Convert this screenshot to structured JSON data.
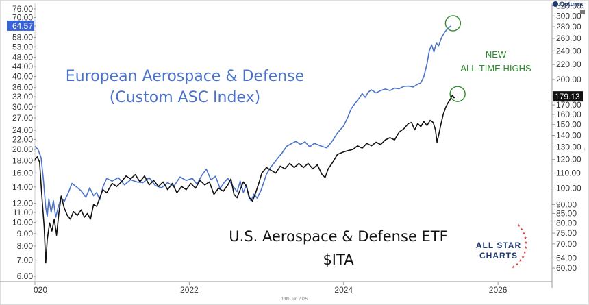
{
  "chart_data": {
    "type": "line",
    "x_axis": {
      "labels": [
        {
          "label": "020",
          "year": 2020.0
        },
        {
          "label": "2022",
          "year": 2022.0
        },
        {
          "label": "2024",
          "year": 2024.0
        },
        {
          "label": "2026",
          "year": 2026.0
        }
      ],
      "range": [
        2020.0,
        2026.7
      ],
      "date_readout": "13th Jun 2025"
    },
    "left_axis": {
      "scale": "log",
      "range": [
        5.7,
        80
      ],
      "ticks": [
        "76.00",
        "70.00",
        "64.57",
        "58.00",
        "53.00",
        "48.00",
        "44.00",
        "40.00",
        "36.00",
        "33.00",
        "30.00",
        "27.00",
        "24.00",
        "22.00",
        "20.00",
        "18.00",
        "16.00",
        "14.00",
        "12.00",
        "11.00",
        "10.00",
        "9.00",
        "8.00",
        "7.00",
        "6.00"
      ],
      "last_value_label": "64.57",
      "last_value_color": "#3b63d8"
    },
    "right_axis": {
      "scale": "log",
      "range": [
        55,
        325
      ],
      "ticks": [
        "320.00",
        "300.00",
        "280.00",
        "260.00",
        "240.00",
        "220.00",
        "200.00",
        "180.00",
        "170.00",
        "160.00",
        "150.00",
        "140.00",
        "130.00",
        "120.00",
        "110.00",
        "100.00",
        "90.00",
        "85.00",
        "80.00",
        "75.00",
        "70.00",
        "64.00",
        "60.00"
      ],
      "last_value_label": "179.13",
      "last_value_color": "#111111"
    },
    "series": [
      {
        "name": "European Aerospace & Defense (Custom ASC Index)",
        "color": "#4a73c9",
        "axis": "left",
        "points": [
          [
            2020.0,
            20.6
          ],
          [
            2020.04,
            20.0
          ],
          [
            2020.08,
            18.5
          ],
          [
            2020.11,
            15.0
          ],
          [
            2020.14,
            11.5
          ],
          [
            2020.16,
            10.6
          ],
          [
            2020.18,
            12.5
          ],
          [
            2020.21,
            11.0
          ],
          [
            2020.24,
            12.3
          ],
          [
            2020.27,
            10.5
          ],
          [
            2020.3,
            11.5
          ],
          [
            2020.34,
            12.7
          ],
          [
            2020.38,
            12.2
          ],
          [
            2020.43,
            13.2
          ],
          [
            2020.48,
            14.5
          ],
          [
            2020.54,
            14.0
          ],
          [
            2020.6,
            13.5
          ],
          [
            2020.66,
            12.7
          ],
          [
            2020.71,
            13.9
          ],
          [
            2020.76,
            12.9
          ],
          [
            2020.8,
            13.3
          ],
          [
            2020.84,
            12.4
          ],
          [
            2020.88,
            14.0
          ],
          [
            2020.93,
            15.2
          ],
          [
            2021.0,
            14.8
          ],
          [
            2021.08,
            15.3
          ],
          [
            2021.16,
            14.3
          ],
          [
            2021.24,
            15.0
          ],
          [
            2021.32,
            14.7
          ],
          [
            2021.4,
            14.6
          ],
          [
            2021.48,
            15.3
          ],
          [
            2021.56,
            14.2
          ],
          [
            2021.64,
            13.9
          ],
          [
            2021.72,
            14.6
          ],
          [
            2021.8,
            14.1
          ],
          [
            2021.88,
            15.4
          ],
          [
            2021.96,
            14.9
          ],
          [
            2022.04,
            15.2
          ],
          [
            2022.1,
            14.4
          ],
          [
            2022.16,
            15.6
          ],
          [
            2022.22,
            16.6
          ],
          [
            2022.28,
            15.0
          ],
          [
            2022.34,
            15.5
          ],
          [
            2022.4,
            13.8
          ],
          [
            2022.45,
            14.6
          ],
          [
            2022.5,
            15.2
          ],
          [
            2022.56,
            14.2
          ],
          [
            2022.62,
            13.4
          ],
          [
            2022.66,
            14.8
          ],
          [
            2022.7,
            13.3
          ],
          [
            2022.74,
            14.3
          ],
          [
            2022.77,
            12.8
          ],
          [
            2022.8,
            12.3
          ],
          [
            2022.84,
            13.1
          ],
          [
            2022.88,
            12.6
          ],
          [
            2022.93,
            13.6
          ],
          [
            2023.0,
            15.8
          ],
          [
            2023.05,
            16.8
          ],
          [
            2023.1,
            17.6
          ],
          [
            2023.15,
            18.5
          ],
          [
            2023.2,
            19.3
          ],
          [
            2023.26,
            20.6
          ],
          [
            2023.32,
            21.1
          ],
          [
            2023.38,
            21.6
          ],
          [
            2023.44,
            21.0
          ],
          [
            2023.5,
            21.5
          ],
          [
            2023.56,
            20.5
          ],
          [
            2023.62,
            21.2
          ],
          [
            2023.7,
            20.7
          ],
          [
            2023.78,
            20.3
          ],
          [
            2023.86,
            21.8
          ],
          [
            2023.92,
            23.4
          ],
          [
            2024.0,
            25.0
          ],
          [
            2024.05,
            27.0
          ],
          [
            2024.1,
            29.5
          ],
          [
            2024.15,
            31.0
          ],
          [
            2024.2,
            32.5
          ],
          [
            2024.24,
            34.0
          ],
          [
            2024.28,
            32.8
          ],
          [
            2024.32,
            34.5
          ],
          [
            2024.36,
            35.2
          ],
          [
            2024.42,
            34.2
          ],
          [
            2024.48,
            35.0
          ],
          [
            2024.54,
            35.5
          ],
          [
            2024.6,
            35.0
          ],
          [
            2024.66,
            35.8
          ],
          [
            2024.72,
            35.6
          ],
          [
            2024.78,
            36.4
          ],
          [
            2024.84,
            36.5
          ],
          [
            2024.9,
            36.2
          ],
          [
            2024.96,
            37.2
          ],
          [
            2025.0,
            37.6
          ],
          [
            2025.04,
            40.0
          ],
          [
            2025.08,
            45.0
          ],
          [
            2025.11,
            51.0
          ],
          [
            2025.14,
            54.0
          ],
          [
            2025.17,
            50.5
          ],
          [
            2025.2,
            55.0
          ],
          [
            2025.23,
            53.5
          ],
          [
            2025.27,
            58.0
          ],
          [
            2025.31,
            61.0
          ],
          [
            2025.35,
            63.0
          ],
          [
            2025.39,
            64.57
          ]
        ]
      },
      {
        "name": "U.S. Aerospace & Defense ETF $ITA",
        "color": "#111111",
        "axis": "right",
        "points": [
          [
            2020.0,
            120.0
          ],
          [
            2020.03,
            122.0
          ],
          [
            2020.06,
            118.0
          ],
          [
            2020.09,
            95.0
          ],
          [
            2020.12,
            78.0
          ],
          [
            2020.14,
            62.0
          ],
          [
            2020.16,
            72.0
          ],
          [
            2020.19,
            80.0
          ],
          [
            2020.22,
            76.0
          ],
          [
            2020.25,
            82.0
          ],
          [
            2020.28,
            74.0
          ],
          [
            2020.31,
            85.0
          ],
          [
            2020.34,
            95.0
          ],
          [
            2020.38,
            88.0
          ],
          [
            2020.42,
            84.0
          ],
          [
            2020.46,
            82.0
          ],
          [
            2020.5,
            86.0
          ],
          [
            2020.55,
            84.0
          ],
          [
            2020.6,
            87.0
          ],
          [
            2020.64,
            83.0
          ],
          [
            2020.68,
            85.0
          ],
          [
            2020.72,
            82.0
          ],
          [
            2020.76,
            90.0
          ],
          [
            2020.8,
            89.0
          ],
          [
            2020.84,
            94.0
          ],
          [
            2020.88,
            99.0
          ],
          [
            2020.93,
            97.0
          ],
          [
            2021.0,
            103.0
          ],
          [
            2021.06,
            101.0
          ],
          [
            2021.12,
            104.0
          ],
          [
            2021.18,
            108.0
          ],
          [
            2021.24,
            106.0
          ],
          [
            2021.3,
            109.0
          ],
          [
            2021.36,
            104.0
          ],
          [
            2021.42,
            108.0
          ],
          [
            2021.48,
            102.0
          ],
          [
            2021.54,
            105.0
          ],
          [
            2021.6,
            101.0
          ],
          [
            2021.66,
            104.0
          ],
          [
            2021.72,
            99.0
          ],
          [
            2021.78,
            103.0
          ],
          [
            2021.84,
            97.0
          ],
          [
            2021.9,
            101.0
          ],
          [
            2021.96,
            99.0
          ],
          [
            2022.02,
            103.0
          ],
          [
            2022.08,
            100.0
          ],
          [
            2022.14,
            105.0
          ],
          [
            2022.2,
            102.0
          ],
          [
            2022.26,
            104.0
          ],
          [
            2022.32,
            96.0
          ],
          [
            2022.38,
            100.0
          ],
          [
            2022.44,
            98.0
          ],
          [
            2022.5,
            102.0
          ],
          [
            2022.54,
            106.0
          ],
          [
            2022.58,
            96.0
          ],
          [
            2022.62,
            94.0
          ],
          [
            2022.66,
            99.0
          ],
          [
            2022.7,
            104.0
          ],
          [
            2022.74,
            101.0
          ],
          [
            2022.78,
            94.0
          ],
          [
            2022.82,
            92.0
          ],
          [
            2022.86,
            97.0
          ],
          [
            2022.9,
            103.0
          ],
          [
            2022.94,
            110.0
          ],
          [
            2023.0,
            114.0
          ],
          [
            2023.06,
            112.0
          ],
          [
            2023.12,
            110.0
          ],
          [
            2023.18,
            115.0
          ],
          [
            2023.24,
            113.0
          ],
          [
            2023.3,
            117.0
          ],
          [
            2023.36,
            114.0
          ],
          [
            2023.42,
            117.0
          ],
          [
            2023.48,
            114.0
          ],
          [
            2023.54,
            117.0
          ],
          [
            2023.6,
            113.0
          ],
          [
            2023.66,
            116.0
          ],
          [
            2023.72,
            109.0
          ],
          [
            2023.76,
            107.0
          ],
          [
            2023.8,
            113.0
          ],
          [
            2023.86,
            118.0
          ],
          [
            2023.92,
            124.0
          ],
          [
            2024.0,
            126.0
          ],
          [
            2024.06,
            127.0
          ],
          [
            2024.12,
            128.0
          ],
          [
            2024.18,
            131.0
          ],
          [
            2024.24,
            129.0
          ],
          [
            2024.3,
            133.0
          ],
          [
            2024.36,
            131.0
          ],
          [
            2024.42,
            134.0
          ],
          [
            2024.48,
            132.0
          ],
          [
            2024.54,
            136.0
          ],
          [
            2024.6,
            138.0
          ],
          [
            2024.66,
            136.0
          ],
          [
            2024.72,
            143.0
          ],
          [
            2024.78,
            146.0
          ],
          [
            2024.84,
            151.0
          ],
          [
            2024.88,
            152.0
          ],
          [
            2024.92,
            145.0
          ],
          [
            2024.96,
            151.0
          ],
          [
            2025.0,
            148.0
          ],
          [
            2025.04,
            153.0
          ],
          [
            2025.08,
            149.0
          ],
          [
            2025.12,
            154.0
          ],
          [
            2025.16,
            152.0
          ],
          [
            2025.19,
            145.0
          ],
          [
            2025.21,
            134.0
          ],
          [
            2025.23,
            140.0
          ],
          [
            2025.26,
            150.0
          ],
          [
            2025.29,
            160.0
          ],
          [
            2025.32,
            167.0
          ],
          [
            2025.35,
            172.0
          ],
          [
            2025.38,
            176.0
          ],
          [
            2025.41,
            181.0
          ],
          [
            2025.43,
            178.0
          ],
          [
            2025.45,
            179.13
          ]
        ]
      }
    ],
    "annotations": {
      "blue_line1": "European Aerospace & Defense",
      "blue_line2": "(Custom ASC Index)",
      "black_line1": "U.S. Aerospace & Defense ETF",
      "black_line2": "$ITA",
      "green_line1": "NEW",
      "green_line2": "ALL-TIME HIGHS",
      "green_color": "#2e8b2e",
      "highlight_circles": [
        {
          "series": 0,
          "year": 2025.39,
          "value": 64.57
        },
        {
          "series": 1,
          "year": 2025.45,
          "value": 179.13
        }
      ]
    },
    "branding": {
      "top_right": "Optuma",
      "logo_line1": "ALL STAR",
      "logo_line2": "CHARTS"
    },
    "grid": false,
    "legend": "none"
  }
}
